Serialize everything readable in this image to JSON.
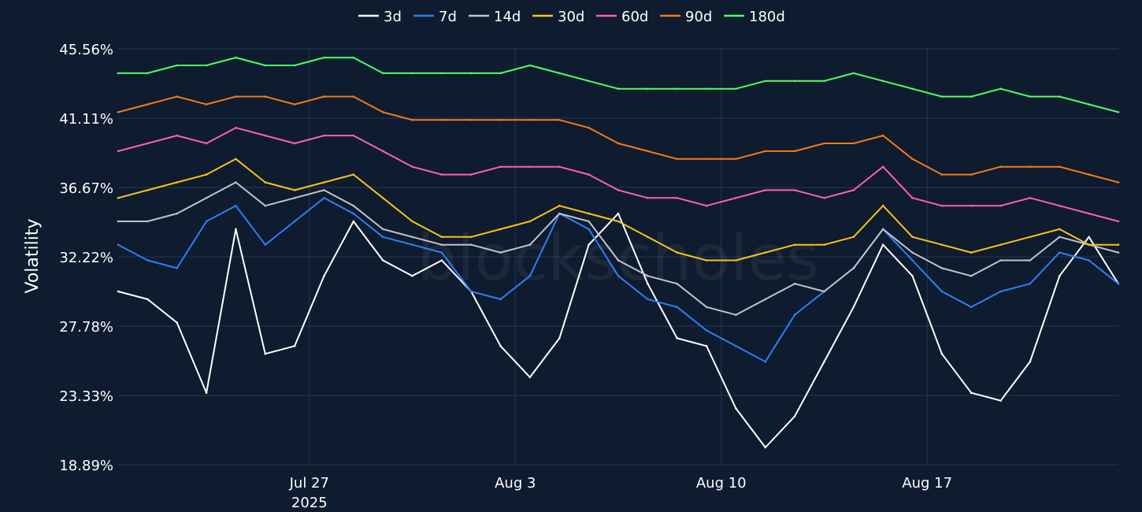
{
  "watermark": "blockscholes",
  "chart_data": {
    "type": "line",
    "title": "",
    "xlabel": "",
    "ylabel": "Volatility",
    "ylim": [
      18.89,
      45.56
    ],
    "yticks": [
      "18.89%",
      "23.33%",
      "27.78%",
      "32.22%",
      "36.67%",
      "41.11%",
      "45.56%"
    ],
    "ytick_values": [
      18.89,
      23.33,
      27.78,
      32.22,
      36.67,
      41.11,
      45.56
    ],
    "xlim": [
      "2025-07-20T12:00",
      "2025-08-23T12:00"
    ],
    "xticks": [
      {
        "date": "2025-07-27",
        "label": "Jul 27",
        "sublabel": "2025"
      },
      {
        "date": "2025-08-03",
        "label": "Aug 3",
        "sublabel": ""
      },
      {
        "date": "2025-08-10",
        "label": "Aug 10",
        "sublabel": ""
      },
      {
        "date": "2025-08-17",
        "label": "Aug 17",
        "sublabel": ""
      }
    ],
    "grid": true,
    "legend_position": "top-center",
    "x": [
      "2025-07-20T12:00",
      "2025-07-21T12:00",
      "2025-07-22T12:00",
      "2025-07-23T12:00",
      "2025-07-24T12:00",
      "2025-07-25T12:00",
      "2025-07-26T12:00",
      "2025-07-27T12:00",
      "2025-07-28T12:00",
      "2025-07-29T12:00",
      "2025-07-30T12:00",
      "2025-07-31T12:00",
      "2025-08-01T12:00",
      "2025-08-02T12:00",
      "2025-08-03T12:00",
      "2025-08-04T12:00",
      "2025-08-05T12:00",
      "2025-08-06T12:00",
      "2025-08-07T12:00",
      "2025-08-08T12:00",
      "2025-08-09T12:00",
      "2025-08-10T12:00",
      "2025-08-11T12:00",
      "2025-08-12T12:00",
      "2025-08-13T12:00",
      "2025-08-14T12:00",
      "2025-08-15T12:00",
      "2025-08-16T12:00",
      "2025-08-17T12:00",
      "2025-08-18T12:00",
      "2025-08-19T12:00",
      "2025-08-20T12:00",
      "2025-08-21T12:00",
      "2025-08-22T12:00",
      "2025-08-23T12:00"
    ],
    "series": [
      {
        "name": "3d",
        "color": "#ffffff",
        "values": [
          30.0,
          29.5,
          28.0,
          23.5,
          34.0,
          26.0,
          26.5,
          31.0,
          34.5,
          32.0,
          31.0,
          32.0,
          30.0,
          26.5,
          24.5,
          27.0,
          33.0,
          35.0,
          30.5,
          27.0,
          26.5,
          22.5,
          20.0,
          22.0,
          25.5,
          29.0,
          33.0,
          31.0,
          26.0,
          23.5,
          23.0,
          25.5,
          31.0,
          33.5,
          30.5
        ]
      },
      {
        "name": "7d",
        "color": "#2d7ff9",
        "values": [
          33.0,
          32.0,
          31.5,
          34.5,
          35.5,
          33.0,
          34.5,
          36.0,
          35.0,
          33.5,
          33.0,
          32.5,
          30.0,
          29.5,
          31.0,
          35.0,
          34.0,
          31.0,
          29.5,
          29.0,
          27.5,
          26.5,
          25.5,
          28.5,
          30.0,
          31.5,
          34.0,
          32.0,
          30.0,
          29.0,
          30.0,
          30.5,
          32.5,
          32.0,
          30.5
        ]
      },
      {
        "name": "14d",
        "color": "#c0c4cc",
        "values": [
          34.5,
          34.5,
          35.0,
          36.0,
          37.0,
          35.5,
          36.0,
          36.5,
          35.5,
          34.0,
          33.5,
          33.0,
          33.0,
          32.5,
          33.0,
          35.0,
          34.5,
          32.0,
          31.0,
          30.5,
          29.0,
          28.5,
          29.5,
          30.5,
          30.0,
          31.5,
          34.0,
          32.5,
          31.5,
          31.0,
          32.0,
          32.0,
          33.5,
          33.0,
          32.5
        ]
      },
      {
        "name": "30d",
        "color": "#f5c518",
        "values": [
          36.0,
          36.5,
          37.0,
          37.5,
          38.5,
          37.0,
          36.5,
          37.0,
          37.5,
          36.0,
          34.5,
          33.5,
          33.5,
          34.0,
          34.5,
          35.5,
          35.0,
          34.5,
          33.5,
          32.5,
          32.0,
          32.0,
          32.5,
          33.0,
          33.0,
          33.5,
          35.5,
          33.5,
          33.0,
          32.5,
          33.0,
          33.5,
          34.0,
          33.0,
          33.0
        ]
      },
      {
        "name": "60d",
        "color": "#ff5fb0",
        "values": [
          39.0,
          39.5,
          40.0,
          39.5,
          40.5,
          40.0,
          39.5,
          40.0,
          40.0,
          39.0,
          38.0,
          37.5,
          37.5,
          38.0,
          38.0,
          38.0,
          37.5,
          36.5,
          36.0,
          36.0,
          35.5,
          36.0,
          36.5,
          36.5,
          36.0,
          36.5,
          38.0,
          36.0,
          35.5,
          35.5,
          35.5,
          36.0,
          35.5,
          35.0,
          34.5
        ]
      },
      {
        "name": "90d",
        "color": "#f07a1c",
        "values": [
          41.5,
          42.0,
          42.5,
          42.0,
          42.5,
          42.5,
          42.0,
          42.5,
          42.5,
          41.5,
          41.0,
          41.0,
          41.0,
          41.0,
          41.0,
          41.0,
          40.5,
          39.5,
          39.0,
          38.5,
          38.5,
          38.5,
          39.0,
          39.0,
          39.5,
          39.5,
          40.0,
          38.5,
          37.5,
          37.5,
          38.0,
          38.0,
          38.0,
          37.5,
          37.0
        ]
      },
      {
        "name": "180d",
        "color": "#4cff66",
        "values": [
          44.0,
          44.0,
          44.5,
          44.5,
          45.0,
          44.5,
          44.5,
          45.0,
          45.0,
          44.0,
          44.0,
          44.0,
          44.0,
          44.0,
          44.5,
          44.0,
          43.5,
          43.0,
          43.0,
          43.0,
          43.0,
          43.0,
          43.5,
          43.5,
          43.5,
          44.0,
          43.5,
          43.0,
          42.5,
          42.5,
          43.0,
          42.5,
          42.5,
          42.0,
          41.5
        ]
      }
    ]
  }
}
